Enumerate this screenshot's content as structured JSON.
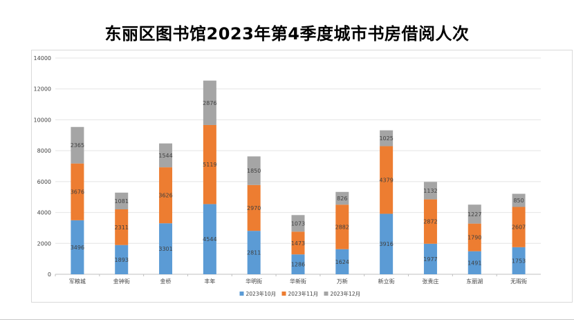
{
  "page": {
    "title": "东丽区图书馆2023年第4季度城市书房借阅人次"
  },
  "chart_data": {
    "type": "bar",
    "stacked": true,
    "title": "东丽区图书馆2023年第4季度城市书房借阅人次",
    "xlabel": "",
    "ylabel": "",
    "ylim": [
      0,
      14000
    ],
    "yticks": [
      0,
      2000,
      4000,
      6000,
      8000,
      10000,
      12000,
      14000
    ],
    "grid": true,
    "legend_position": "bottom",
    "categories": [
      "军粮城",
      "金钟街",
      "金桥",
      "丰年",
      "华明街",
      "华新街",
      "万新",
      "新立街",
      "张贵庄",
      "东丽湖",
      "无瑕街"
    ],
    "series": [
      {
        "name": "2023年10月",
        "color": "#5b9bd5",
        "values": [
          3496,
          1893,
          3301,
          4544,
          2811,
          1286,
          1624,
          3916,
          1977,
          1491,
          1753
        ]
      },
      {
        "name": "2023年11月",
        "color": "#ed7d31",
        "values": [
          3676,
          2311,
          3626,
          5119,
          2970,
          1473,
          2882,
          4379,
          2872,
          1790,
          2607
        ]
      },
      {
        "name": "2023年12月",
        "color": "#a5a5a5",
        "values": [
          2365,
          1081,
          1544,
          2876,
          1850,
          1073,
          826,
          1025,
          1132,
          1227,
          850
        ]
      }
    ]
  }
}
